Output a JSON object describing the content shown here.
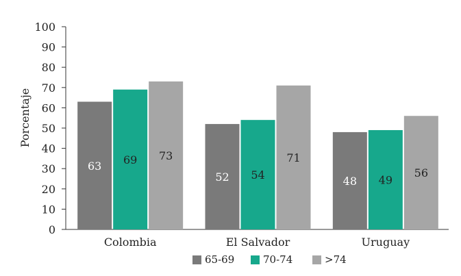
{
  "chart_data": {
    "type": "bar",
    "title": "",
    "xlabel": "",
    "ylabel": "Porcentaje",
    "ylim": [
      0,
      100
    ],
    "yticks": [
      0,
      10,
      20,
      30,
      40,
      50,
      60,
      70,
      80,
      90,
      100
    ],
    "grid": false,
    "legend_position": "bottom",
    "categories": [
      "Colombia",
      "El Salvador",
      "Uruguay"
    ],
    "series": [
      {
        "name": "65-69",
        "values": [
          63,
          52,
          48
        ],
        "color": "#7a7a7a",
        "label_color": "#ffffff"
      },
      {
        "name": "70-74",
        "values": [
          69,
          54,
          49
        ],
        "color": "#17a88c",
        "label_color": "#222222"
      },
      {
        "name": ">74",
        "values": [
          73,
          71,
          56
        ],
        "color": "#a6a6a6",
        "label_color": "#222222"
      }
    ]
  }
}
